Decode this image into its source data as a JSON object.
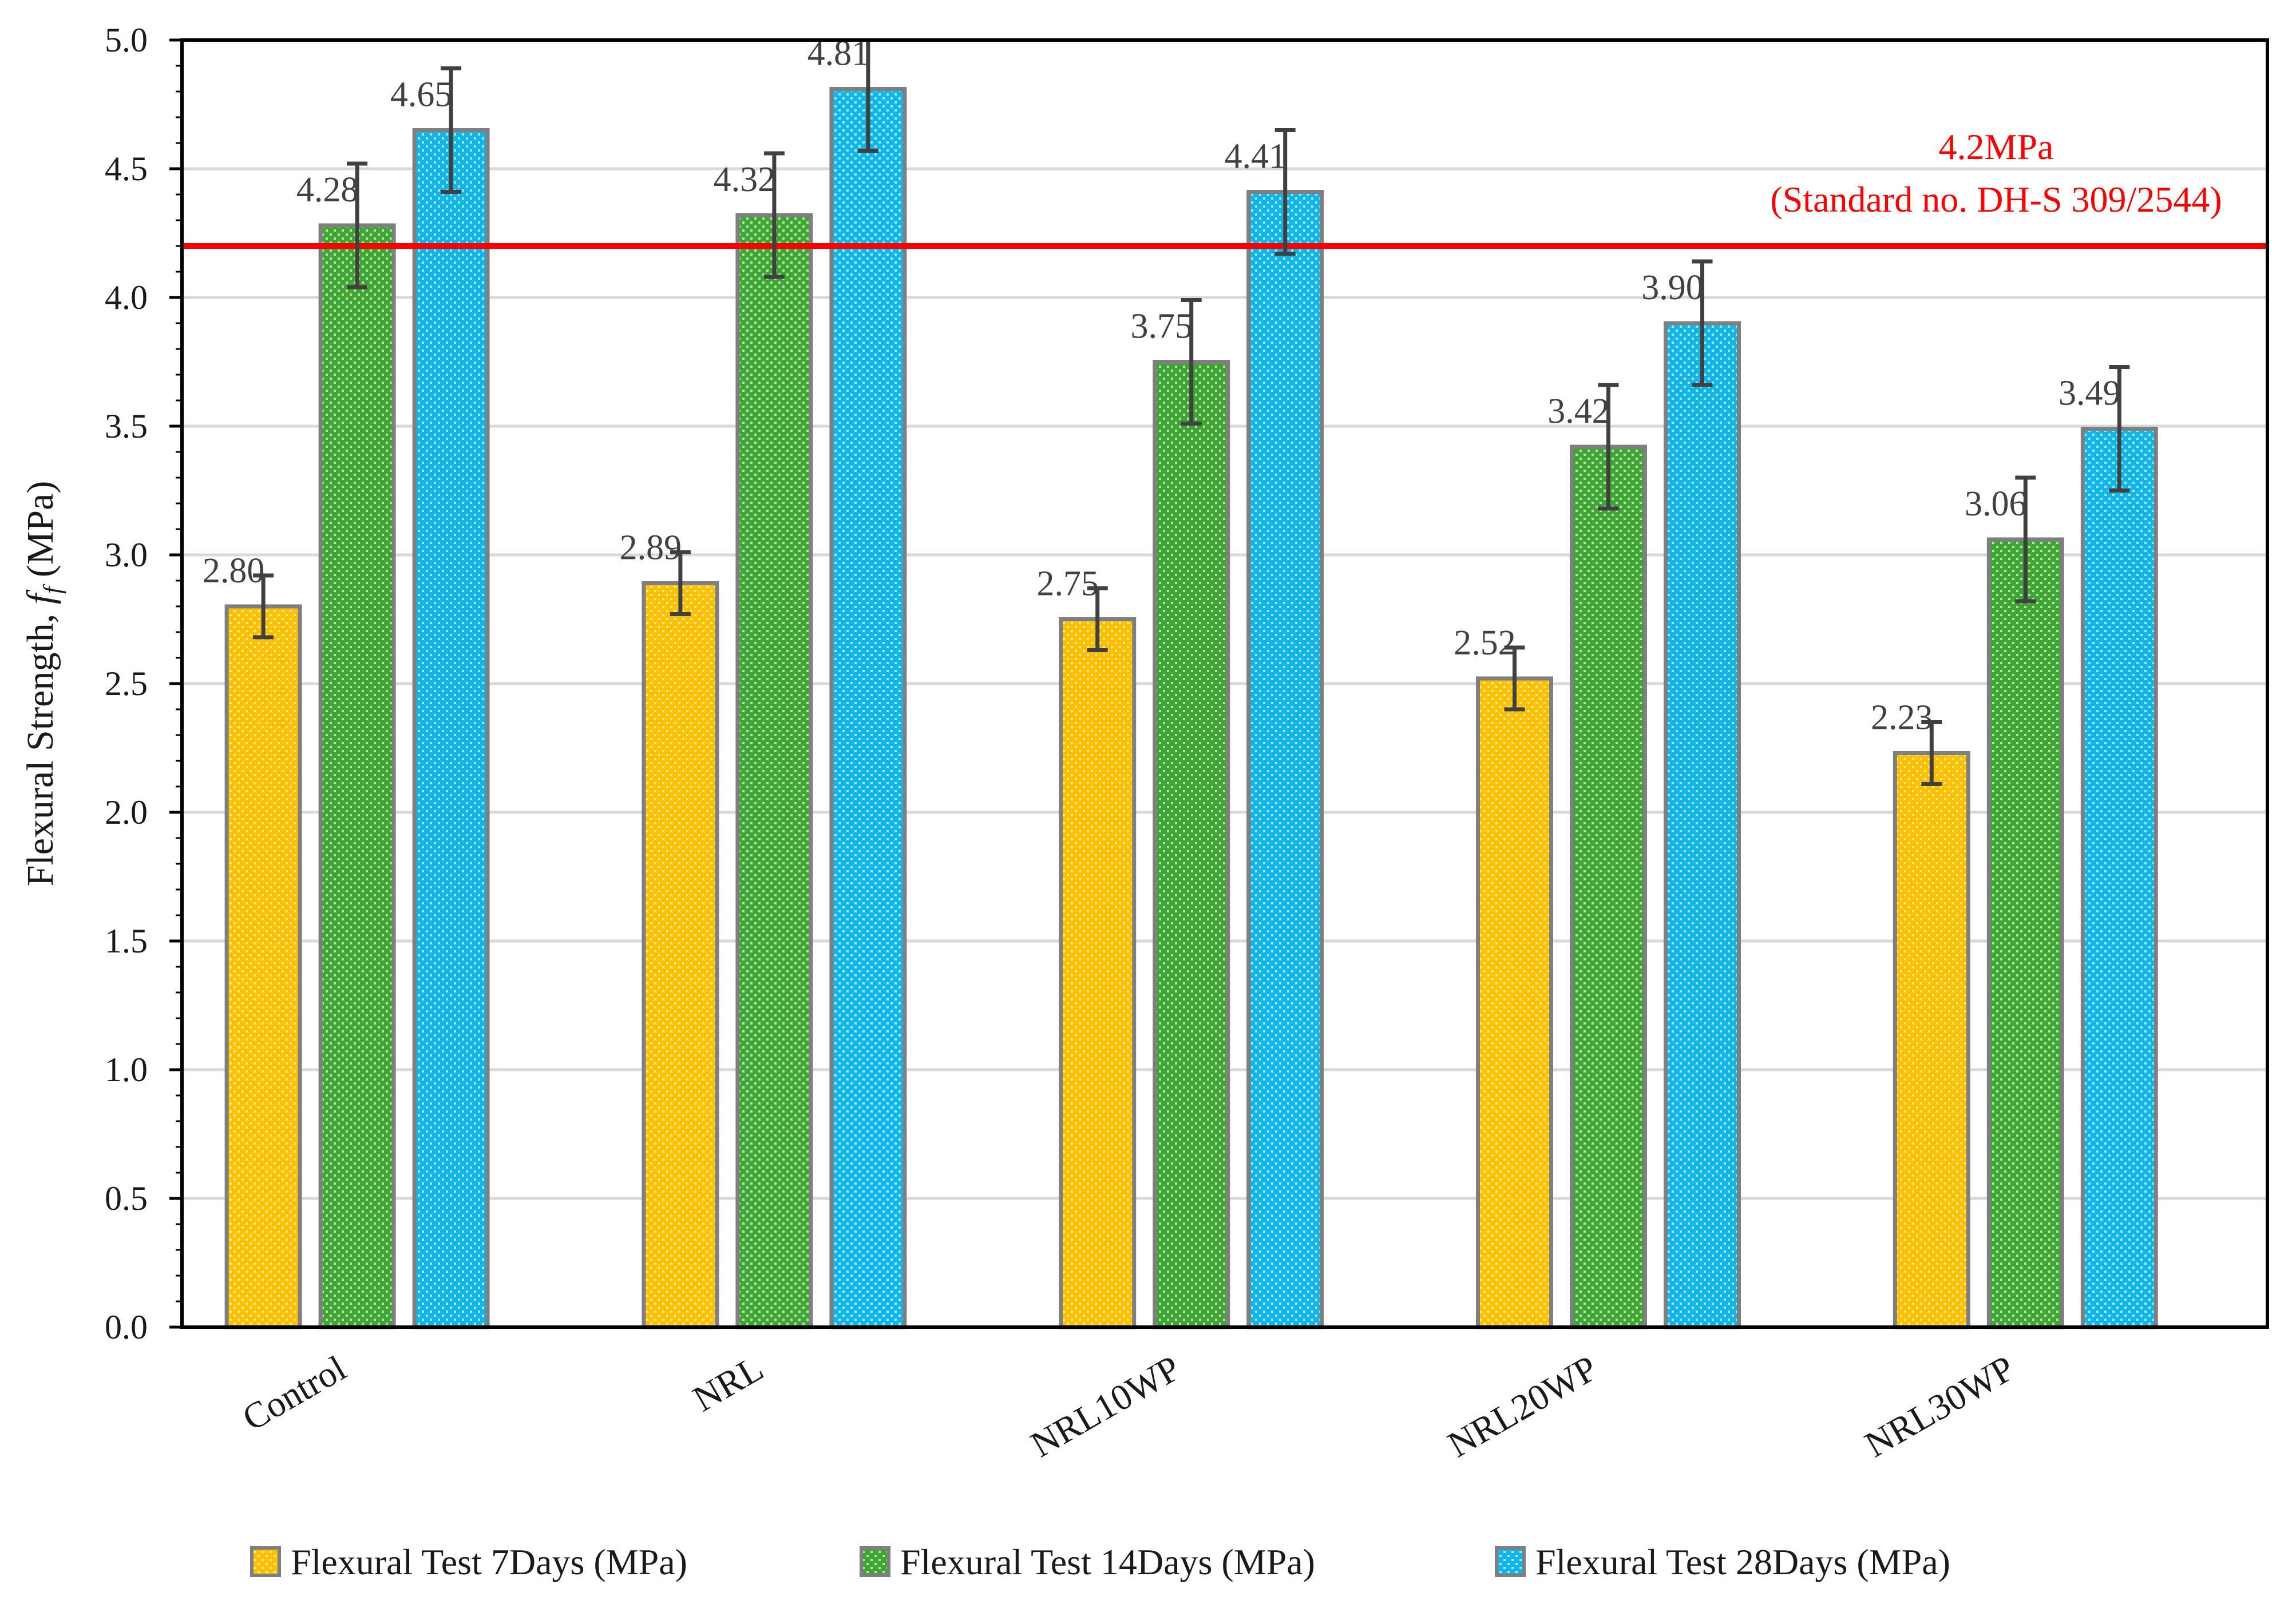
{
  "chart_data": {
    "type": "bar",
    "categories": [
      "Control",
      "NRL",
      "NRL10WP",
      "NRL20WP",
      "NRL30WP"
    ],
    "series": [
      {
        "name": "Flexural Test 7Days (MPa)",
        "values": [
          2.8,
          2.89,
          2.75,
          2.52,
          2.23
        ],
        "labels": [
          "2.80",
          "2.89",
          "2.75",
          "2.52",
          "2.23"
        ],
        "error": 0.12,
        "color": "#ffc000",
        "pattern_color": "#ffe699"
      },
      {
        "name": "Flexural Test 14Days (MPa)",
        "values": [
          4.28,
          4.32,
          3.75,
          3.42,
          3.06
        ],
        "labels": [
          "4.28",
          "4.32",
          "3.75",
          "3.42",
          "3.06"
        ],
        "error": 0.24,
        "color": "#3fa535",
        "pattern_color": "#b6e0a8"
      },
      {
        "name": "Flexural Test 28Days (MPa)",
        "values": [
          4.65,
          4.81,
          4.41,
          3.9,
          3.49
        ],
        "labels": [
          "4.65",
          "4.81",
          "4.41",
          "3.90",
          "3.49"
        ],
        "error": 0.24,
        "color": "#11b5e8",
        "pattern_color": "#a8e4f7"
      }
    ],
    "ylabel": "Flexural Strength,",
    "ylabel_symbol": "f",
    "ylabel_subscript": "f",
    "ylabel_unit": "(MPa)",
    "ylim": [
      0,
      5
    ],
    "yticks": [
      "0.0",
      "0.5",
      "1.0",
      "1.5",
      "2.0",
      "2.5",
      "3.0",
      "3.5",
      "4.0",
      "4.5",
      "5.0"
    ],
    "reference_line": {
      "value": 4.2,
      "label_line1": "4.2MPa",
      "label_line2": "(Standard no. DH-S 309/2544)",
      "color": "#ff0000"
    },
    "grid": true,
    "legend_position": "bottom"
  }
}
